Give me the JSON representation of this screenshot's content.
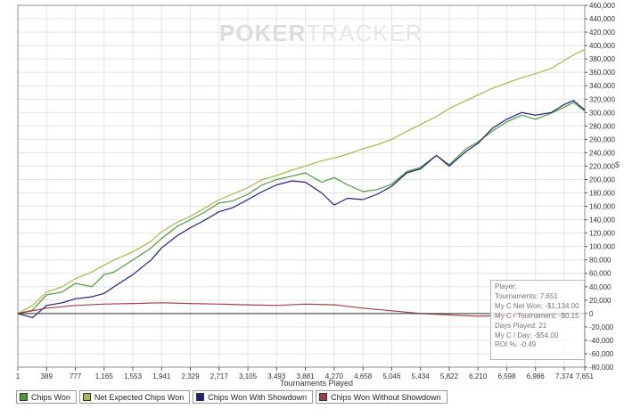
{
  "watermark": {
    "bold": "POKER",
    "light": "TRACKER"
  },
  "unit_mark": "$",
  "info_box": {
    "lines": [
      "Player:",
      "Tournaments: 7,651",
      "My C Net Won: -$1,134.00",
      "My C / Tournament: -$0.15",
      "Days Played: 21",
      "My C / Day: -$54.00",
      "ROI %: -0.49"
    ]
  },
  "chart_data": {
    "type": "line",
    "title": "",
    "xlabel": "Tournaments Played",
    "ylabel": "",
    "xlim": [
      1,
      7651
    ],
    "ylim": [
      -80000,
      460000
    ],
    "x_ticks": [
      1,
      389,
      777,
      1165,
      1553,
      1941,
      2329,
      2717,
      3105,
      3493,
      3881,
      4270,
      4658,
      5046,
      5434,
      5822,
      6210,
      6598,
      6986,
      7374,
      7651
    ],
    "x_tick_labels": [
      "1",
      "389",
      "777",
      "1,165",
      "1,553",
      "1,941",
      "2,329",
      "2,717",
      "3,105",
      "3,493",
      "3,881",
      "4,270",
      "4,658",
      "5,046",
      "5,434",
      "5,822",
      "6,210",
      "6,598",
      "6,986",
      "7,374",
      "7,651"
    ],
    "y_ticks": [
      -80000,
      -60000,
      -40000,
      -20000,
      0,
      20000,
      40000,
      60000,
      80000,
      100000,
      120000,
      140000,
      160000,
      180000,
      200000,
      220000,
      240000,
      260000,
      280000,
      300000,
      320000,
      340000,
      360000,
      380000,
      400000,
      420000,
      440000,
      460000
    ],
    "y_tick_labels": [
      "-80,000",
      "-60,000",
      "-40,000",
      "-20,000",
      "0",
      "20,000",
      "40,000",
      "60,000",
      "80,000",
      "100,000",
      "120,000",
      "140,000",
      "160,000",
      "180,000",
      "200,000",
      "220,000",
      "240,000",
      "260,000",
      "280,000",
      "300,000",
      "320,000",
      "340,000",
      "360,000",
      "380,000",
      "400,000",
      "420,000",
      "440,000",
      "460,000"
    ],
    "grid": true,
    "legend_position": "bottom-left",
    "series": [
      {
        "name": "Chips Won",
        "color": "#4a9a3c",
        "x": [
          1,
          200,
          389,
          600,
          777,
          1000,
          1165,
          1300,
          1553,
          1800,
          1941,
          2150,
          2329,
          2500,
          2717,
          2900,
          3105,
          3300,
          3493,
          3700,
          3881,
          4100,
          4270,
          4450,
          4658,
          4850,
          5046,
          5250,
          5434,
          5650,
          5822,
          6050,
          6210,
          6400,
          6598,
          6800,
          6986,
          7200,
          7374,
          7500,
          7651
        ],
        "y": [
          0,
          5000,
          28000,
          32000,
          45000,
          40000,
          58000,
          62000,
          80000,
          98000,
          112000,
          130000,
          140000,
          150000,
          165000,
          168000,
          178000,
          192000,
          200000,
          205000,
          210000,
          196000,
          203000,
          192000,
          182000,
          185000,
          193000,
          212000,
          218000,
          236000,
          222000,
          246000,
          256000,
          272000,
          286000,
          296000,
          290000,
          299000,
          308000,
          315000,
          302000
        ]
      },
      {
        "name": "Net Expected Chips Won",
        "color": "#a7b84a",
        "x": [
          1,
          200,
          389,
          600,
          777,
          1000,
          1165,
          1300,
          1553,
          1800,
          1941,
          2150,
          2329,
          2500,
          2717,
          2900,
          3105,
          3300,
          3493,
          3700,
          3881,
          4100,
          4270,
          4450,
          4658,
          4850,
          5046,
          5250,
          5434,
          5650,
          5822,
          6050,
          6210,
          6400,
          6598,
          6800,
          6986,
          7200,
          7374,
          7500,
          7651
        ],
        "y": [
          0,
          12000,
          32000,
          40000,
          52000,
          62000,
          72000,
          80000,
          92000,
          108000,
          122000,
          136000,
          145000,
          156000,
          170000,
          178000,
          188000,
          200000,
          206000,
          214000,
          220000,
          228000,
          232000,
          238000,
          246000,
          252000,
          260000,
          272000,
          282000,
          294000,
          306000,
          318000,
          326000,
          336000,
          344000,
          352000,
          358000,
          366000,
          378000,
          386000,
          394000
        ]
      },
      {
        "name": "Chips Won With Showdown",
        "color": "#1f1f7a",
        "x": [
          1,
          200,
          389,
          600,
          777,
          1000,
          1165,
          1300,
          1553,
          1800,
          1941,
          2150,
          2329,
          2500,
          2717,
          2900,
          3105,
          3300,
          3493,
          3700,
          3881,
          4100,
          4270,
          4450,
          4658,
          4850,
          5046,
          5250,
          5434,
          5650,
          5822,
          6050,
          6210,
          6400,
          6598,
          6800,
          6986,
          7200,
          7374,
          7500,
          7651
        ],
        "y": [
          0,
          -6000,
          12000,
          16000,
          22000,
          25000,
          30000,
          40000,
          58000,
          80000,
          98000,
          116000,
          128000,
          138000,
          152000,
          158000,
          170000,
          182000,
          192000,
          198000,
          196000,
          180000,
          162000,
          172000,
          170000,
          178000,
          190000,
          210000,
          216000,
          236000,
          220000,
          242000,
          254000,
          276000,
          290000,
          300000,
          296000,
          300000,
          312000,
          318000,
          304000
        ]
      },
      {
        "name": "Chips Won Without Showdown",
        "color": "#a04040",
        "x": [
          1,
          389,
          777,
          1165,
          1553,
          1941,
          2329,
          2717,
          3105,
          3493,
          3881,
          4270,
          4658,
          5046,
          5434,
          5822,
          6210,
          6598,
          6986,
          7374,
          7651
        ],
        "y": [
          0,
          8000,
          12000,
          14000,
          15000,
          16000,
          15000,
          14000,
          13000,
          12000,
          14000,
          13000,
          8000,
          4000,
          0,
          -2000,
          -4000,
          -3000,
          -2000,
          -1000,
          0
        ]
      }
    ]
  }
}
